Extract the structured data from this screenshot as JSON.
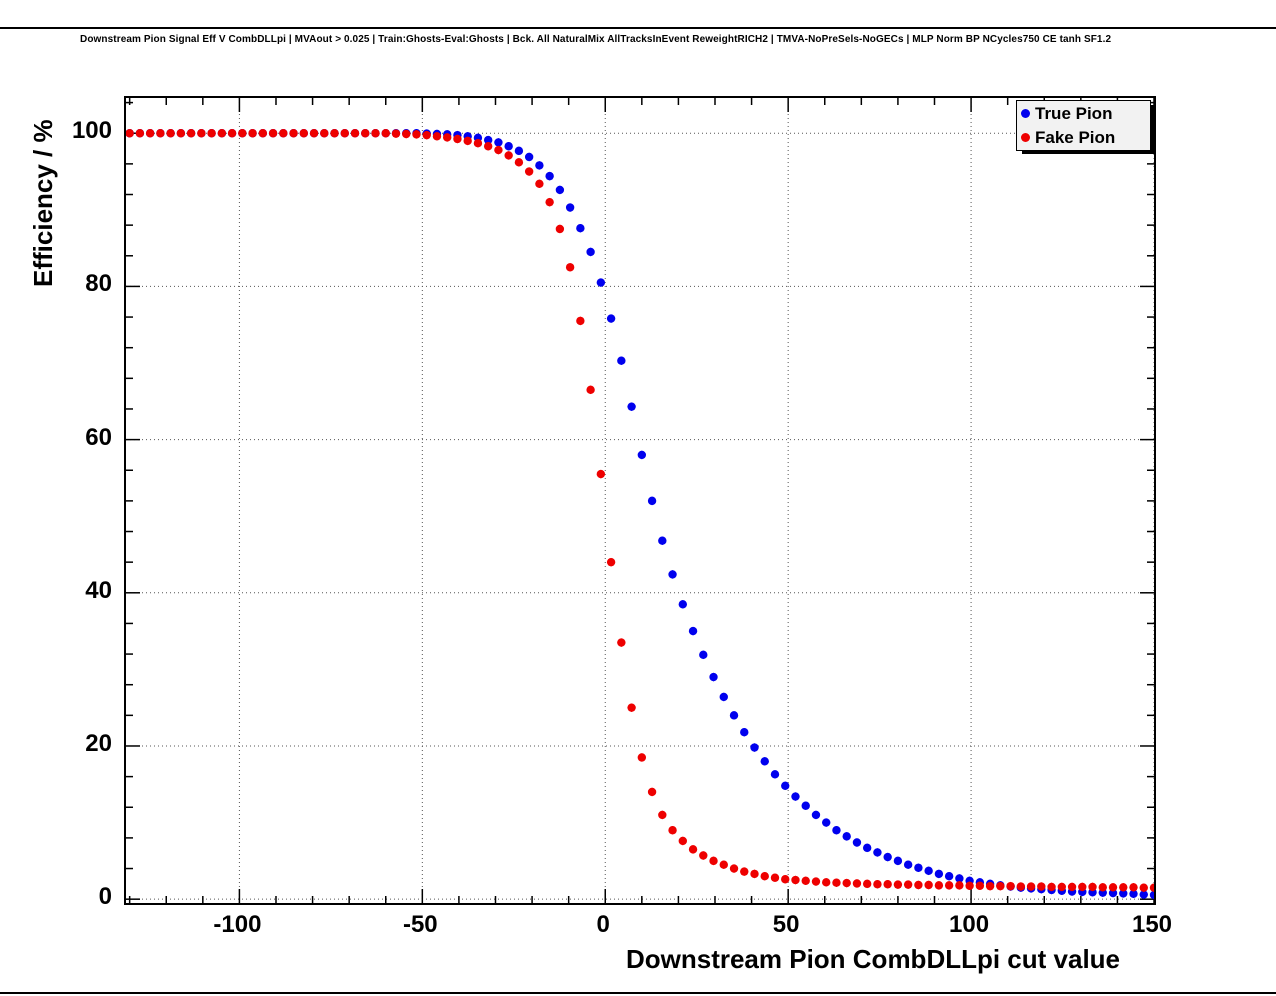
{
  "chart_data": {
    "type": "scatter",
    "title": "Downstream Pion Signal Eff V CombDLLpi | MVAout > 0.025 | Train:Ghosts-Eval:Ghosts | Bck. All NaturalMix AllTracksInEvent ReweightRICH2 | TMVA-NoPreSels-NoGECs | MLP Norm BP NCycles750 CE tanh SF1.2",
    "xlabel": "Downstream Pion CombDLLpi cut value",
    "ylabel": "Efficiency / %",
    "xlim": [
      -131,
      150
    ],
    "ylim": [
      -0.5,
      104.6
    ],
    "x_ticks": [
      -100,
      -50,
      0,
      50,
      100,
      150
    ],
    "y_ticks": [
      0,
      20,
      40,
      60,
      80,
      100
    ],
    "x_minor_step": 10,
    "y_minor_step": 4,
    "grid": true,
    "legend_position": "top-right",
    "marker_size": 4.2,
    "error_halfwidth": 0.55,
    "x_start": -130,
    "x_step": 2.8,
    "series": [
      {
        "name": "True Pion",
        "color": "#0000ee",
        "values": [
          100,
          100,
          100,
          100,
          100,
          100,
          100,
          100,
          100,
          100,
          100,
          100,
          100,
          100,
          100,
          100,
          100,
          100,
          100,
          100,
          100,
          100,
          100,
          100,
          100,
          100,
          100,
          100,
          100,
          99.95,
          99.9,
          99.85,
          99.75,
          99.6,
          99.4,
          99.1,
          98.8,
          98.3,
          97.7,
          96.9,
          95.8,
          94.4,
          92.6,
          90.3,
          87.6,
          84.5,
          80.5,
          75.8,
          70.3,
          64.3,
          58.0,
          52.0,
          46.8,
          42.4,
          38.5,
          35.0,
          31.9,
          29.0,
          26.4,
          24.0,
          21.8,
          19.8,
          18.0,
          16.3,
          14.8,
          13.4,
          12.2,
          11.0,
          10.0,
          9.0,
          8.2,
          7.4,
          6.7,
          6.1,
          5.5,
          5.0,
          4.5,
          4.1,
          3.7,
          3.3,
          3.0,
          2.7,
          2.4,
          2.2,
          2.0,
          1.8,
          1.65,
          1.5,
          1.4,
          1.3,
          1.2,
          1.1,
          1.0,
          0.95,
          0.9,
          0.85,
          0.8,
          0.75,
          0.7,
          0.6,
          0.55
        ]
      },
      {
        "name": "Fake Pion",
        "color": "#ee0000",
        "values": [
          100,
          100,
          100,
          100,
          100,
          100,
          100,
          100,
          100,
          100,
          100,
          100,
          100,
          100,
          100,
          100,
          100,
          100,
          100,
          100,
          100,
          100,
          100,
          100,
          100,
          100,
          99.95,
          99.9,
          99.85,
          99.75,
          99.6,
          99.45,
          99.25,
          99.0,
          98.7,
          98.3,
          97.8,
          97.1,
          96.2,
          95.0,
          93.4,
          91.0,
          87.5,
          82.5,
          75.5,
          66.5,
          55.5,
          44.0,
          33.5,
          25.0,
          18.5,
          14.0,
          11.0,
          9.0,
          7.6,
          6.5,
          5.7,
          5.0,
          4.5,
          4.0,
          3.6,
          3.3,
          3.0,
          2.8,
          2.6,
          2.5,
          2.4,
          2.3,
          2.2,
          2.15,
          2.1,
          2.05,
          2.0,
          1.95,
          1.95,
          1.9,
          1.9,
          1.85,
          1.85,
          1.8,
          1.8,
          1.8,
          1.75,
          1.75,
          1.7,
          1.7,
          1.7,
          1.65,
          1.65,
          1.65,
          1.6,
          1.6,
          1.6,
          1.6,
          1.6,
          1.55,
          1.55,
          1.55,
          1.55,
          1.5,
          1.5
        ]
      }
    ]
  }
}
